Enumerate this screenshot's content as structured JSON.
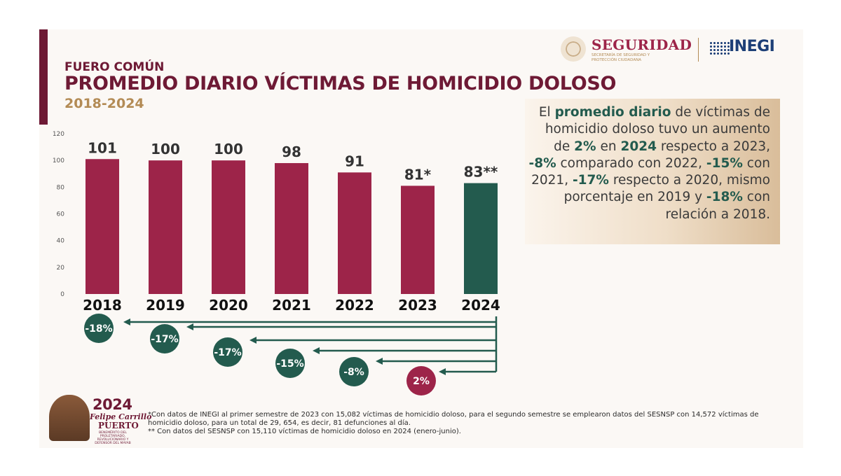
{
  "header": {
    "kicker": "FUERO COMÚN",
    "title": "PROMEDIO DIARIO VÍCTIMAS DE HOMICIDIO DOLOSO",
    "subtitle": "2018-2024"
  },
  "logos": {
    "seguridad": "SEGURIDAD",
    "seguridad_sub": "SECRETARÍA DE SEGURIDAD Y PROTECCIÓN CIUDADANA",
    "inegi": "INEGI"
  },
  "colors": {
    "wine": "#9d2449",
    "green": "#235b4e",
    "gold": "#b38b55"
  },
  "chart_data": {
    "type": "bar",
    "title": "PROMEDIO DIARIO VÍCTIMAS DE HOMICIDIO DOLOSO",
    "categories": [
      "2018",
      "2019",
      "2020",
      "2021",
      "2022",
      "2023",
      "2024"
    ],
    "values": [
      101,
      100,
      100,
      98,
      91,
      81,
      83
    ],
    "value_labels": [
      "101",
      "100",
      "100",
      "98",
      "91",
      "81*",
      "83**"
    ],
    "highlight": [
      false,
      false,
      false,
      false,
      false,
      false,
      true
    ],
    "yticks": [
      0,
      20,
      40,
      60,
      80,
      100,
      120
    ],
    "ylim": [
      0,
      120
    ],
    "xlabel": "",
    "ylabel": "",
    "comparisons": [
      {
        "year": "2018",
        "label": "-18%",
        "positive": false
      },
      {
        "year": "2019",
        "label": "-17%",
        "positive": false
      },
      {
        "year": "2020",
        "label": "-17%",
        "positive": false
      },
      {
        "year": "2021",
        "label": "-15%",
        "positive": false
      },
      {
        "year": "2022",
        "label": "-8%",
        "positive": false
      },
      {
        "year": "2023",
        "label": "2%",
        "positive": true
      }
    ]
  },
  "callout": {
    "p1": "El ",
    "b1": "promedio diario",
    "p2": " de víctimas de homicidio doloso tuvo un aumento de ",
    "b2": "2%",
    "p3": " en ",
    "b3": "2024",
    "p4": " respecto a 2023, ",
    "b4": "-8%",
    "p5": " comparado con 2022, ",
    "b5": "-15%",
    "p6": " con 2021, ",
    "b6": "-17%",
    "p7": " respecto a 2020, mismo porcentaje en 2019 y ",
    "b7": "-18%",
    "p8": " con relación a 2018."
  },
  "footer_logo": {
    "year": "2024",
    "name": "Felipe Carrillo",
    "place": "PUERTO",
    "tagline": "BENEMÉRITO DEL PROLETARIADO, REVOLUCIONARIO Y DEFENSOR DEL MAYAB"
  },
  "notes": {
    "n1": "*Con datos de INEGI al primer semestre de 2023 con 15,082 víctimas de homicidio doloso, para el segundo semestre se emplearon datos del SESNSP con 14,572 víctimas de homicidio doloso, para un total de 29, 654, es decir, 81 defunciones al día.",
    "n2": "** Con datos del SESNSP con 15,110 víctimas de homicidio doloso en 2024 (enero-junio)."
  }
}
